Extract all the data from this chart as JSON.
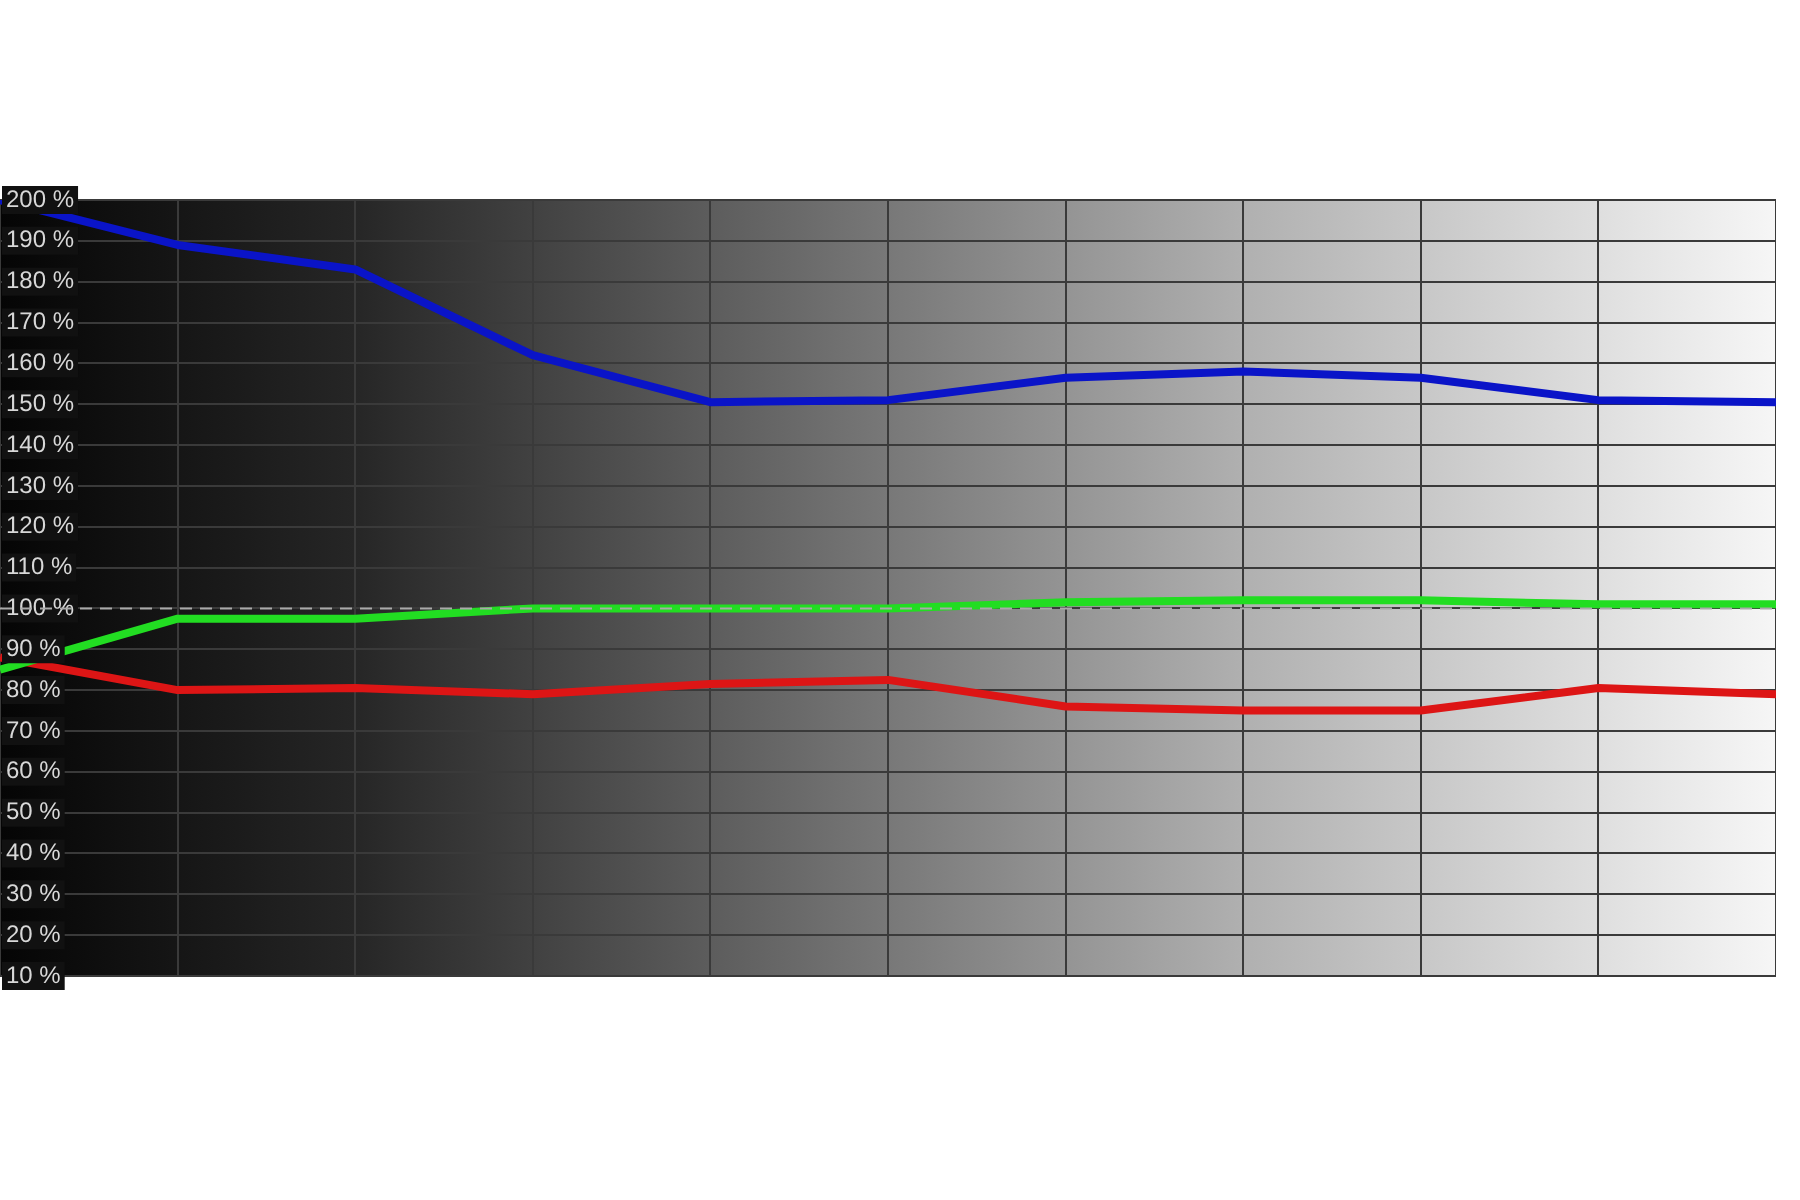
{
  "chart_data": {
    "type": "line",
    "categories": [
      null,
      null,
      null,
      null,
      null,
      null,
      null,
      null,
      null,
      null,
      null
    ],
    "series": [
      {
        "color": "#0a14c8",
        "values": [
          200,
          189,
          183,
          162,
          150.5,
          151,
          156.5,
          158,
          156.5,
          151,
          150.5
        ]
      },
      {
        "color": "#22dd22",
        "values": [
          85,
          97.5,
          97.5,
          100,
          100,
          100,
          101.5,
          102,
          102,
          101,
          101
        ]
      },
      {
        "color": "#dd1515",
        "values": [
          88,
          80,
          80.5,
          79,
          81.5,
          82.5,
          76,
          75,
          75,
          80.5,
          79
        ]
      }
    ],
    "ylim": [
      10,
      200
    ],
    "yticks": [
      {
        "value": 10,
        "label": "10 %"
      },
      {
        "value": 20,
        "label": "20 %"
      },
      {
        "value": 30,
        "label": "30 %"
      },
      {
        "value": 40,
        "label": "40 %"
      },
      {
        "value": 50,
        "label": "50 %"
      },
      {
        "value": 60,
        "label": "60 %"
      },
      {
        "value": 70,
        "label": "70 %"
      },
      {
        "value": 80,
        "label": "80 %"
      },
      {
        "value": 90,
        "label": "90 %"
      },
      {
        "value": 100,
        "label": "100 %"
      },
      {
        "value": 110,
        "label": "110 %"
      },
      {
        "value": 120,
        "label": "120 %"
      },
      {
        "value": 130,
        "label": "130 %"
      },
      {
        "value": 140,
        "label": "140 %"
      },
      {
        "value": 150,
        "label": "150 %"
      },
      {
        "value": 160,
        "label": "160 %"
      },
      {
        "value": 170,
        "label": "170 %"
      },
      {
        "value": 180,
        "label": "180 %"
      },
      {
        "value": 190,
        "label": "190 %"
      },
      {
        "value": 200,
        "label": "200 %"
      }
    ],
    "ref_lines": [
      {
        "axis": "y",
        "value": 100,
        "color": "#aaaaaa",
        "line_style": "dashed"
      }
    ],
    "grid": true,
    "legend": false,
    "marker": "none",
    "line_style": "solid",
    "tick_labels": "y"
  }
}
